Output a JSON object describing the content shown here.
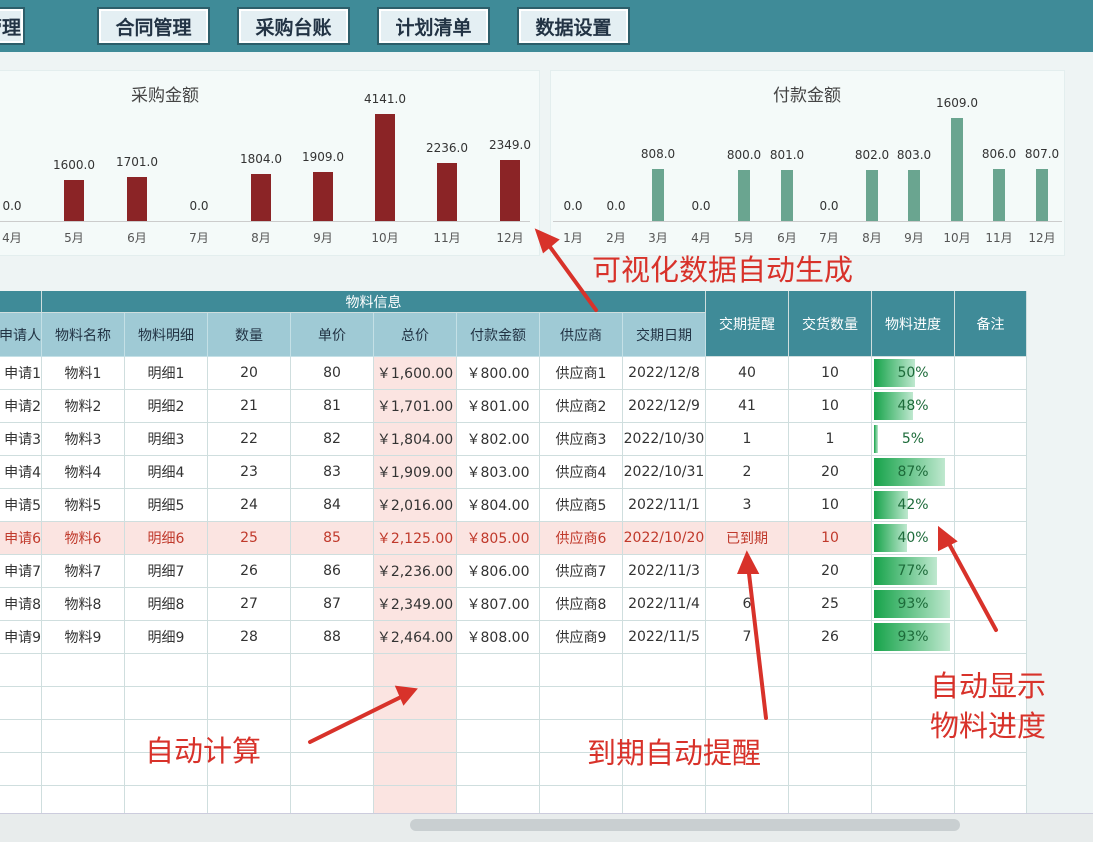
{
  "nav": [
    "商管理",
    "合同管理",
    "采购台账",
    "计划清单",
    "数据设置"
  ],
  "charts": {
    "purchase": {
      "title": "采购金额",
      "type": "bar",
      "color": "#8b2426",
      "categories": [
        "4月",
        "5月",
        "6月",
        "7月",
        "8月",
        "9月",
        "10月",
        "11月",
        "12月"
      ],
      "values": [
        0,
        1600,
        1701,
        0,
        1804,
        1909,
        4141,
        2236,
        2349
      ]
    },
    "payment": {
      "title": "付款金额",
      "type": "bar",
      "color": "#6aa590",
      "categories": [
        "1月",
        "2月",
        "3月",
        "4月",
        "5月",
        "6月",
        "7月",
        "8月",
        "9月",
        "10月",
        "11月",
        "12月"
      ],
      "values": [
        0,
        0,
        808,
        0,
        800,
        801,
        0,
        802,
        803,
        1609,
        806,
        807
      ]
    }
  },
  "table": {
    "group_header": "物料信息",
    "headers": [
      "申请人",
      "物料名称",
      "物料明细",
      "数量",
      "单价",
      "总价",
      "付款金额",
      "供应商",
      "交期日期",
      "交期提醒",
      "交货数量",
      "物料进度",
      "备注"
    ],
    "rows": [
      [
        "申请1",
        "物料1",
        "明细1",
        "20",
        "80",
        "￥1,600.00",
        "￥800.00",
        "供应商1",
        "2022/12/8",
        "40",
        "10",
        50,
        ""
      ],
      [
        "申请2",
        "物料2",
        "明细2",
        "21",
        "81",
        "￥1,701.00",
        "￥801.00",
        "供应商2",
        "2022/12/9",
        "41",
        "10",
        48,
        ""
      ],
      [
        "申请3",
        "物料3",
        "明细3",
        "22",
        "82",
        "￥1,804.00",
        "￥802.00",
        "供应商3",
        "2022/10/30",
        "1",
        "1",
        5,
        ""
      ],
      [
        "申请4",
        "物料4",
        "明细4",
        "23",
        "83",
        "￥1,909.00",
        "￥803.00",
        "供应商4",
        "2022/10/31",
        "2",
        "20",
        87,
        ""
      ],
      [
        "申请5",
        "物料5",
        "明细5",
        "24",
        "84",
        "￥2,016.00",
        "￥804.00",
        "供应商5",
        "2022/11/1",
        "3",
        "10",
        42,
        ""
      ],
      [
        "申请6",
        "物料6",
        "明细6",
        "25",
        "85",
        "￥2,125.00",
        "￥805.00",
        "供应商6",
        "2022/10/20",
        "已到期",
        "10",
        40,
        ""
      ],
      [
        "申请7",
        "物料7",
        "明细7",
        "26",
        "86",
        "￥2,236.00",
        "￥806.00",
        "供应商7",
        "2022/11/3",
        "",
        "20",
        77,
        ""
      ],
      [
        "申请8",
        "物料8",
        "明细8",
        "27",
        "87",
        "￥2,349.00",
        "￥807.00",
        "供应商8",
        "2022/11/4",
        "6",
        "25",
        93,
        ""
      ],
      [
        "申请9",
        "物料9",
        "明细9",
        "28",
        "88",
        "￥2,464.00",
        "￥808.00",
        "供应商9",
        "2022/11/5",
        "7",
        "26",
        93,
        ""
      ]
    ],
    "overdue_row": 5,
    "overdue_color": "#c0392b",
    "total_col_color": "#fbe4e1"
  },
  "annotations": {
    "visualize": "可视化数据自动生成",
    "auto_calc": "自动计算",
    "due_remind": "到期自动提醒",
    "progress_1": "自动显示",
    "progress_2": "物料进度"
  }
}
